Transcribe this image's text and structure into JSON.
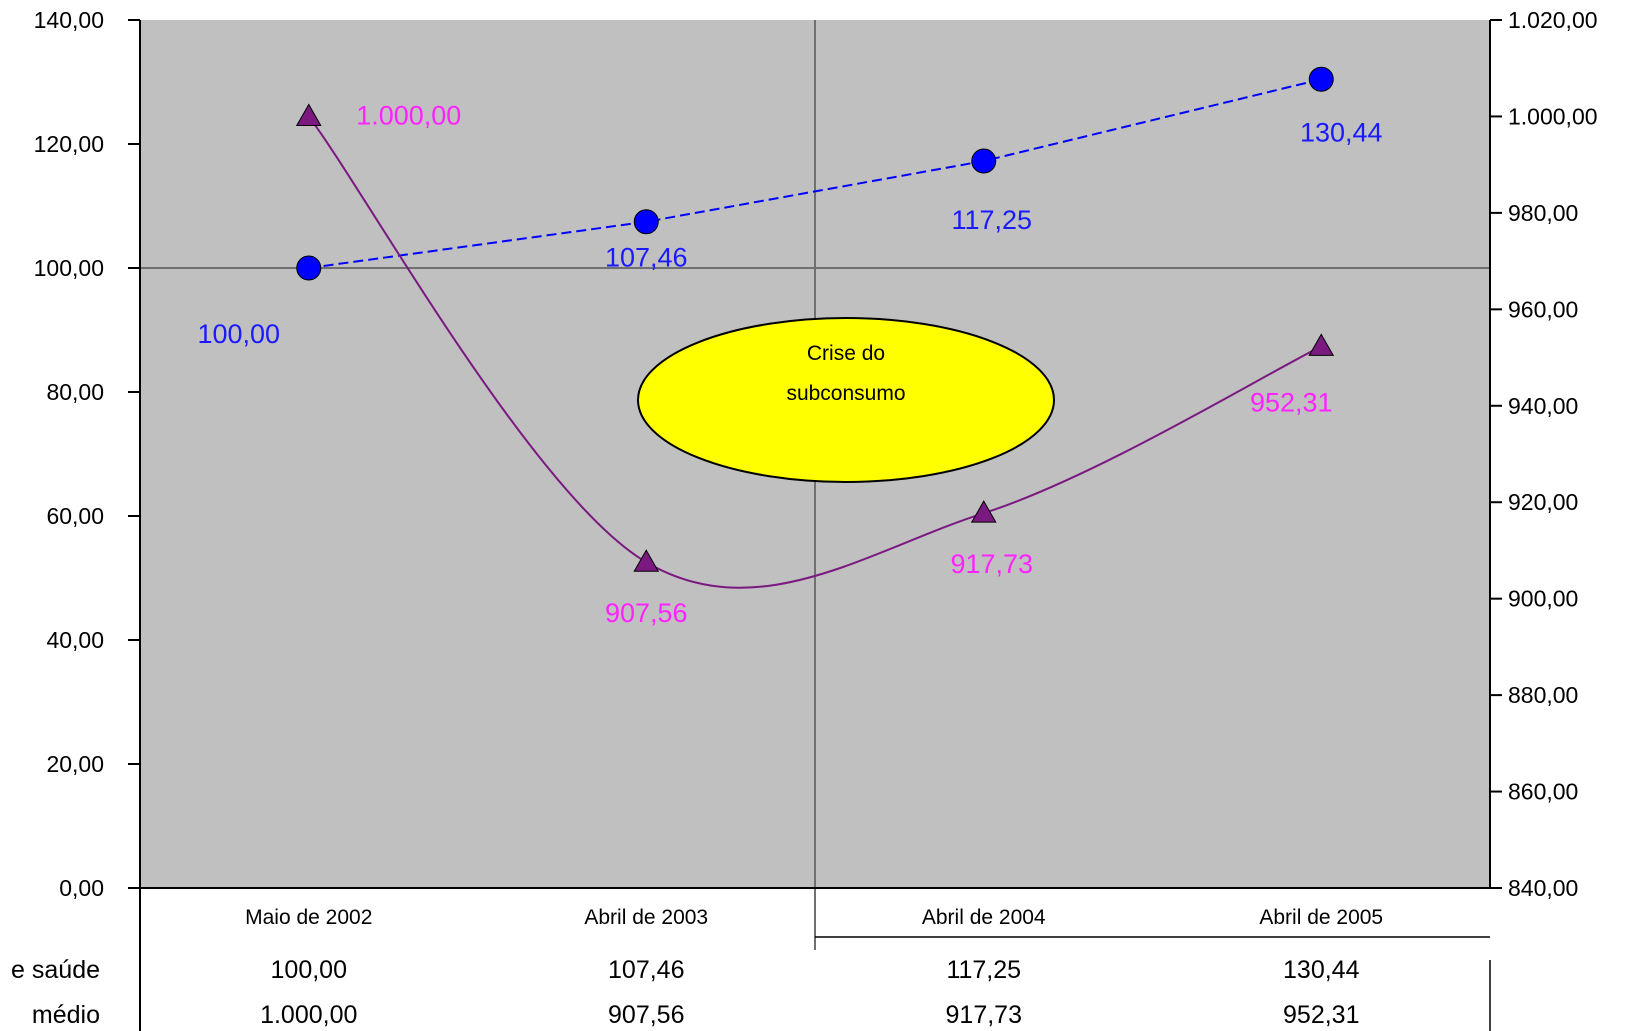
{
  "chart_data": {
    "type": "line",
    "categories": [
      "Maio de 2002",
      "Abril de 2003",
      "Abril de 2004",
      "Abril de 2005"
    ],
    "series": [
      {
        "axis": "left",
        "marker": "circle",
        "style": "dashed",
        "color": "#0000ff",
        "label_color": "#1a1aff",
        "values": [
          100.0,
          107.46,
          117.25,
          130.44
        ],
        "labels": [
          "100,00",
          "107,46",
          "117,25",
          "130,44"
        ],
        "table_label": "e saúde"
      },
      {
        "axis": "right",
        "marker": "triangle",
        "style": "smooth",
        "color": "#7a1a80",
        "label_color": "#ff22ff",
        "values": [
          1000.0,
          907.56,
          917.73,
          952.31
        ],
        "labels": [
          "1.000,00",
          "907,56",
          "917,73",
          "952,31"
        ],
        "table_label": "médio"
      }
    ],
    "y_left": {
      "range": [
        0,
        140
      ],
      "ticks": [
        0,
        20,
        40,
        60,
        80,
        100,
        120,
        140
      ],
      "tick_labels": [
        "0,00",
        "20,00",
        "40,00",
        "60,00",
        "80,00",
        "100,00",
        "120,00",
        "140,00"
      ]
    },
    "y_right": {
      "range": [
        840,
        1020
      ],
      "ticks": [
        840,
        860,
        880,
        900,
        920,
        940,
        960,
        980,
        1000,
        1020
      ],
      "tick_labels": [
        "840,00",
        "860,00",
        "880,00",
        "900,00",
        "920,00",
        "940,00",
        "960,00",
        "980,00",
        "1.000,00",
        "1.020,00"
      ]
    },
    "annotation": {
      "lines": [
        "Crise do",
        "subconsumo"
      ],
      "color": "#ffff00"
    },
    "plot_background": "#c0c0c0",
    "gridlines": {
      "horizontal_at_left_value": 100,
      "vertical_between": [
        "Abril de 2003",
        "Abril de 2004"
      ]
    },
    "title": "",
    "xlabel": "",
    "legend": "data table below the chart"
  }
}
